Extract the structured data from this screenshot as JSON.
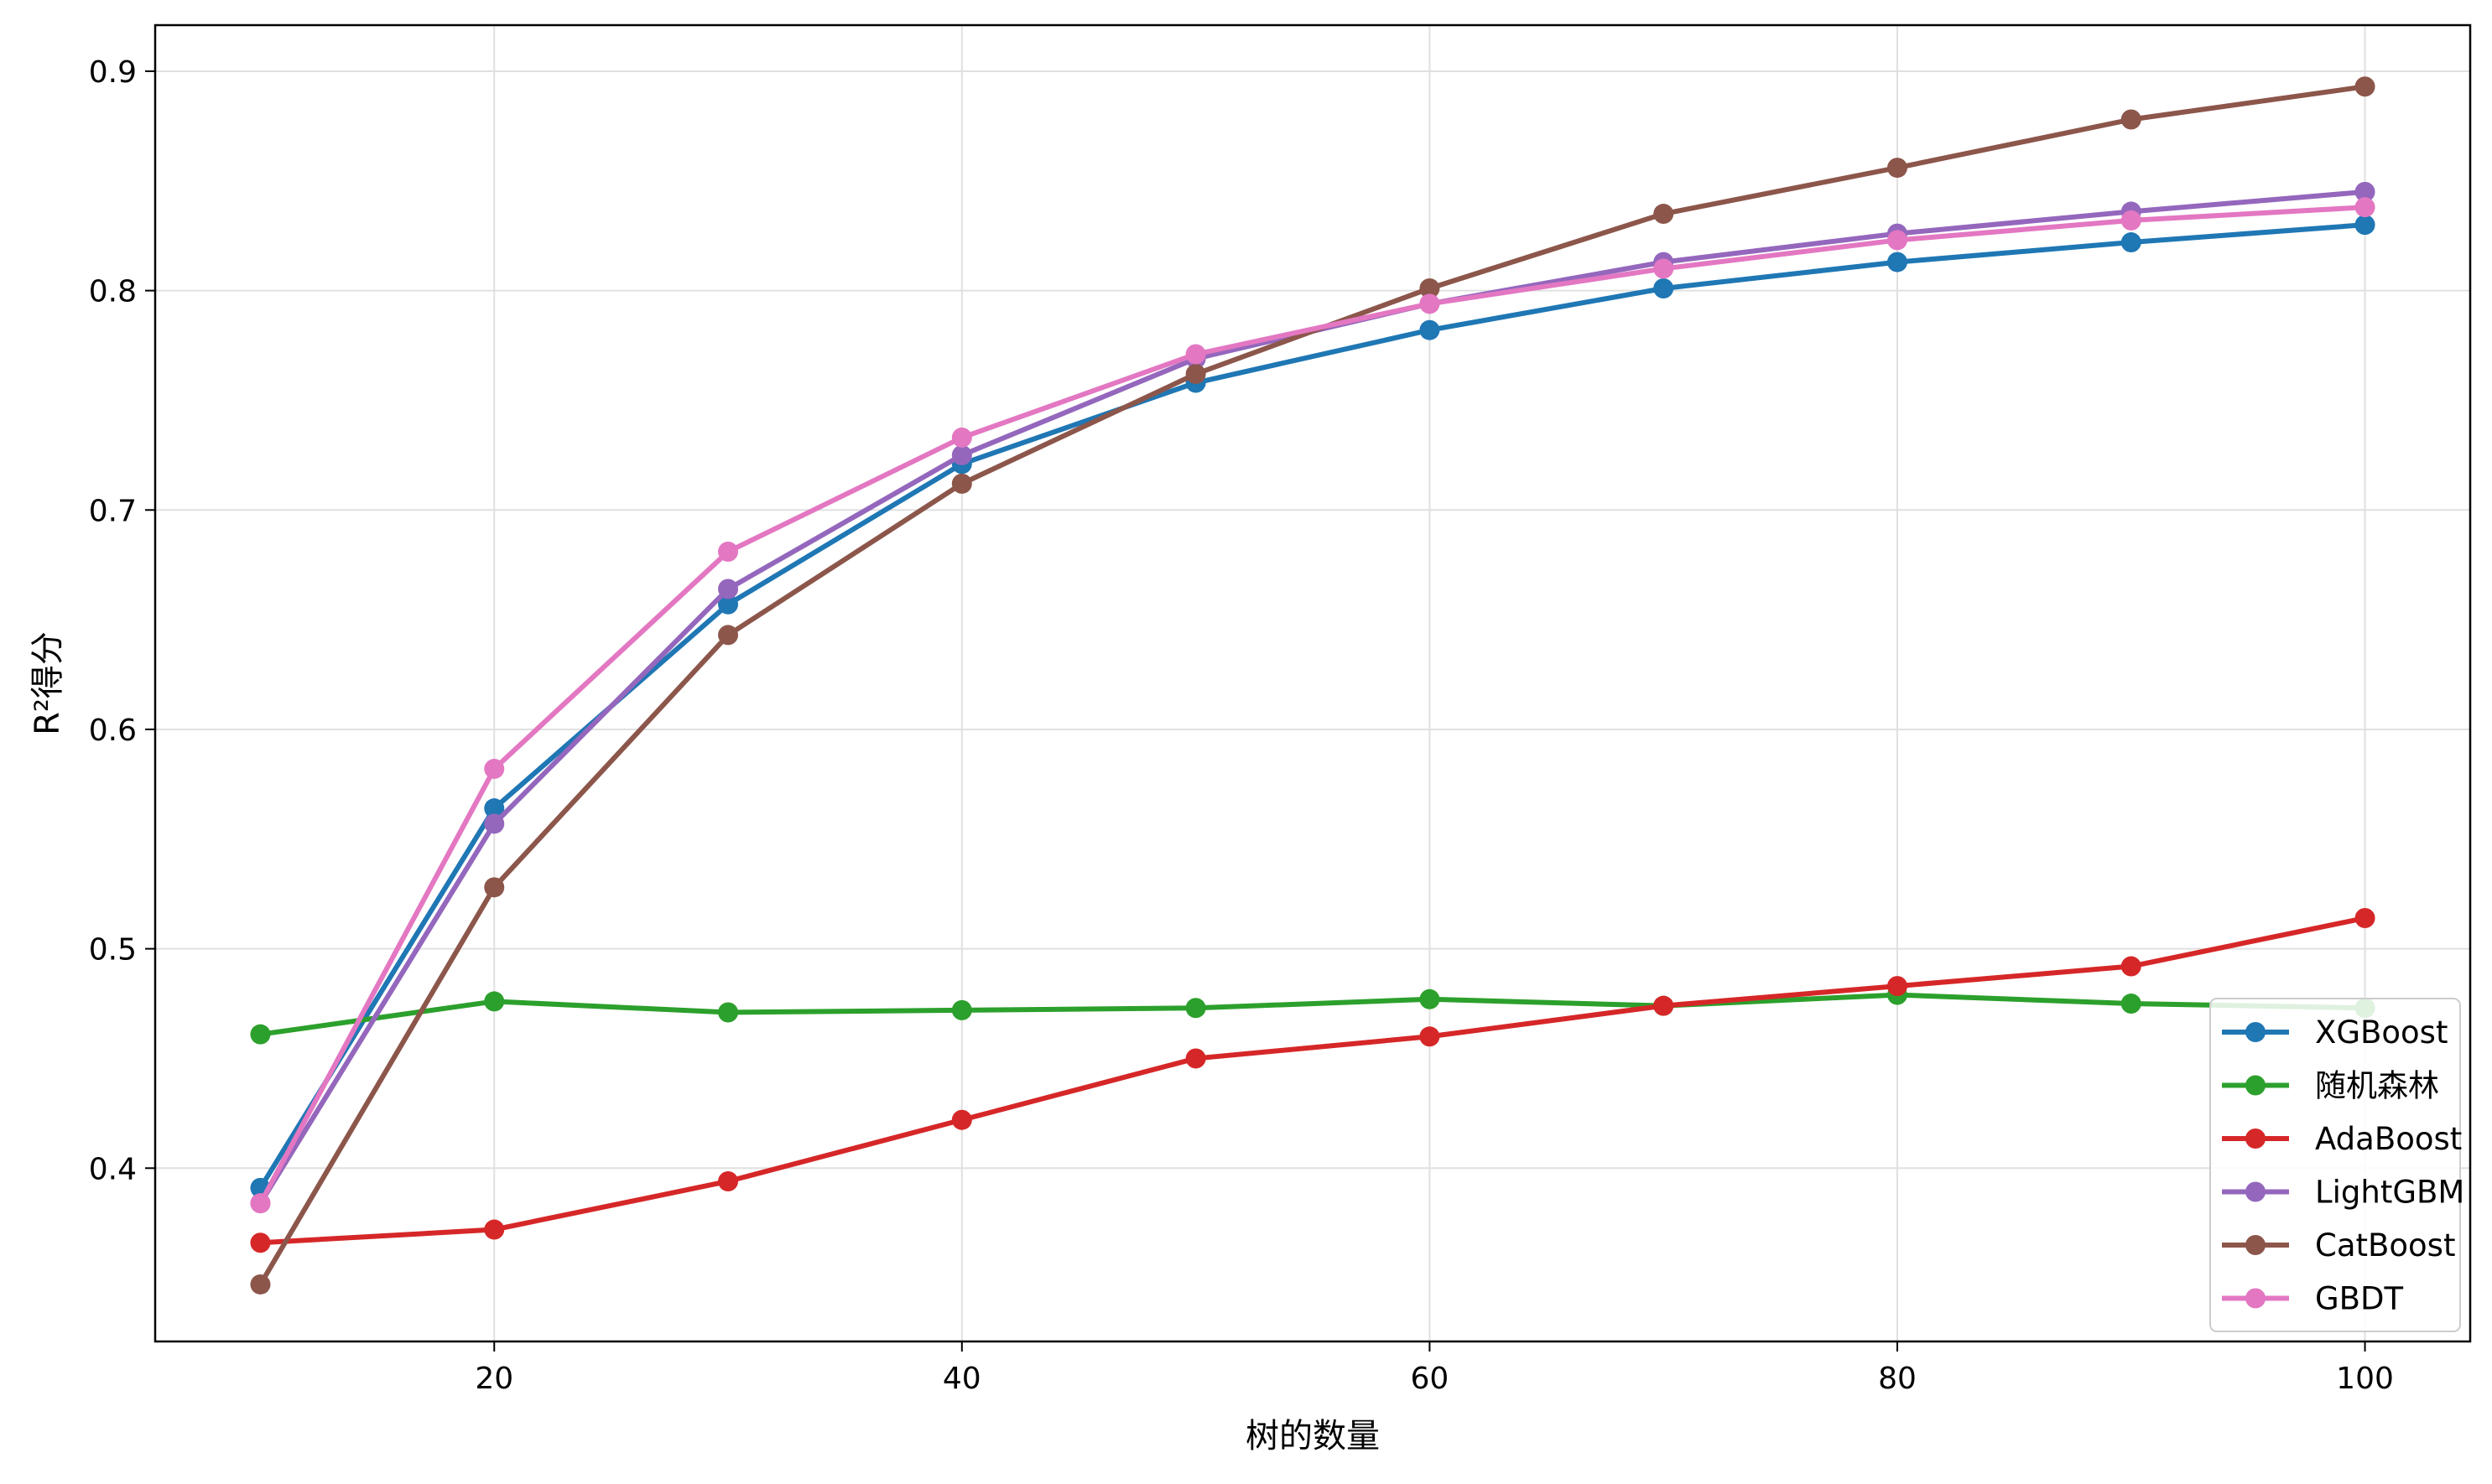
{
  "chart_data": {
    "type": "line",
    "title": "",
    "xlabel": "树的数量",
    "ylabel": "R²得分",
    "x": [
      10,
      20,
      30,
      40,
      50,
      60,
      70,
      80,
      90,
      100
    ],
    "xlim": [
      5.5,
      104.5
    ],
    "ylim": [
      0.321,
      0.921
    ],
    "xticks": [
      "20",
      "40",
      "60",
      "80",
      "100"
    ],
    "yticks": [
      "0.4",
      "0.5",
      "0.6",
      "0.7",
      "0.8",
      "0.9"
    ],
    "grid": true,
    "legend_position": "lower-right",
    "series": [
      {
        "name": "XGBoost",
        "color": "#1f77b4",
        "values": [
          0.391,
          0.564,
          0.657,
          0.721,
          0.758,
          0.782,
          0.801,
          0.813,
          0.822,
          0.83
        ]
      },
      {
        "name": "随机森林",
        "color": "#2ca02c",
        "values": [
          0.461,
          0.476,
          0.471,
          0.472,
          0.473,
          0.477,
          0.474,
          0.479,
          0.475,
          0.473
        ]
      },
      {
        "name": "AdaBoost",
        "color": "#d62728",
        "values": [
          0.366,
          0.372,
          0.394,
          0.422,
          0.45,
          0.46,
          0.474,
          0.483,
          0.492,
          0.514
        ]
      },
      {
        "name": "LightGBM",
        "color": "#9467bd",
        "values": [
          0.384,
          0.557,
          0.664,
          0.725,
          0.769,
          0.794,
          0.813,
          0.826,
          0.836,
          0.845
        ]
      },
      {
        "name": "CatBoost",
        "color": "#8c564b",
        "values": [
          0.347,
          0.528,
          0.643,
          0.712,
          0.762,
          0.801,
          0.835,
          0.856,
          0.878,
          0.893
        ]
      },
      {
        "name": "GBDT",
        "color": "#e377c2",
        "values": [
          0.384,
          0.582,
          0.681,
          0.733,
          0.771,
          0.794,
          0.81,
          0.823,
          0.832,
          0.838
        ]
      }
    ]
  }
}
